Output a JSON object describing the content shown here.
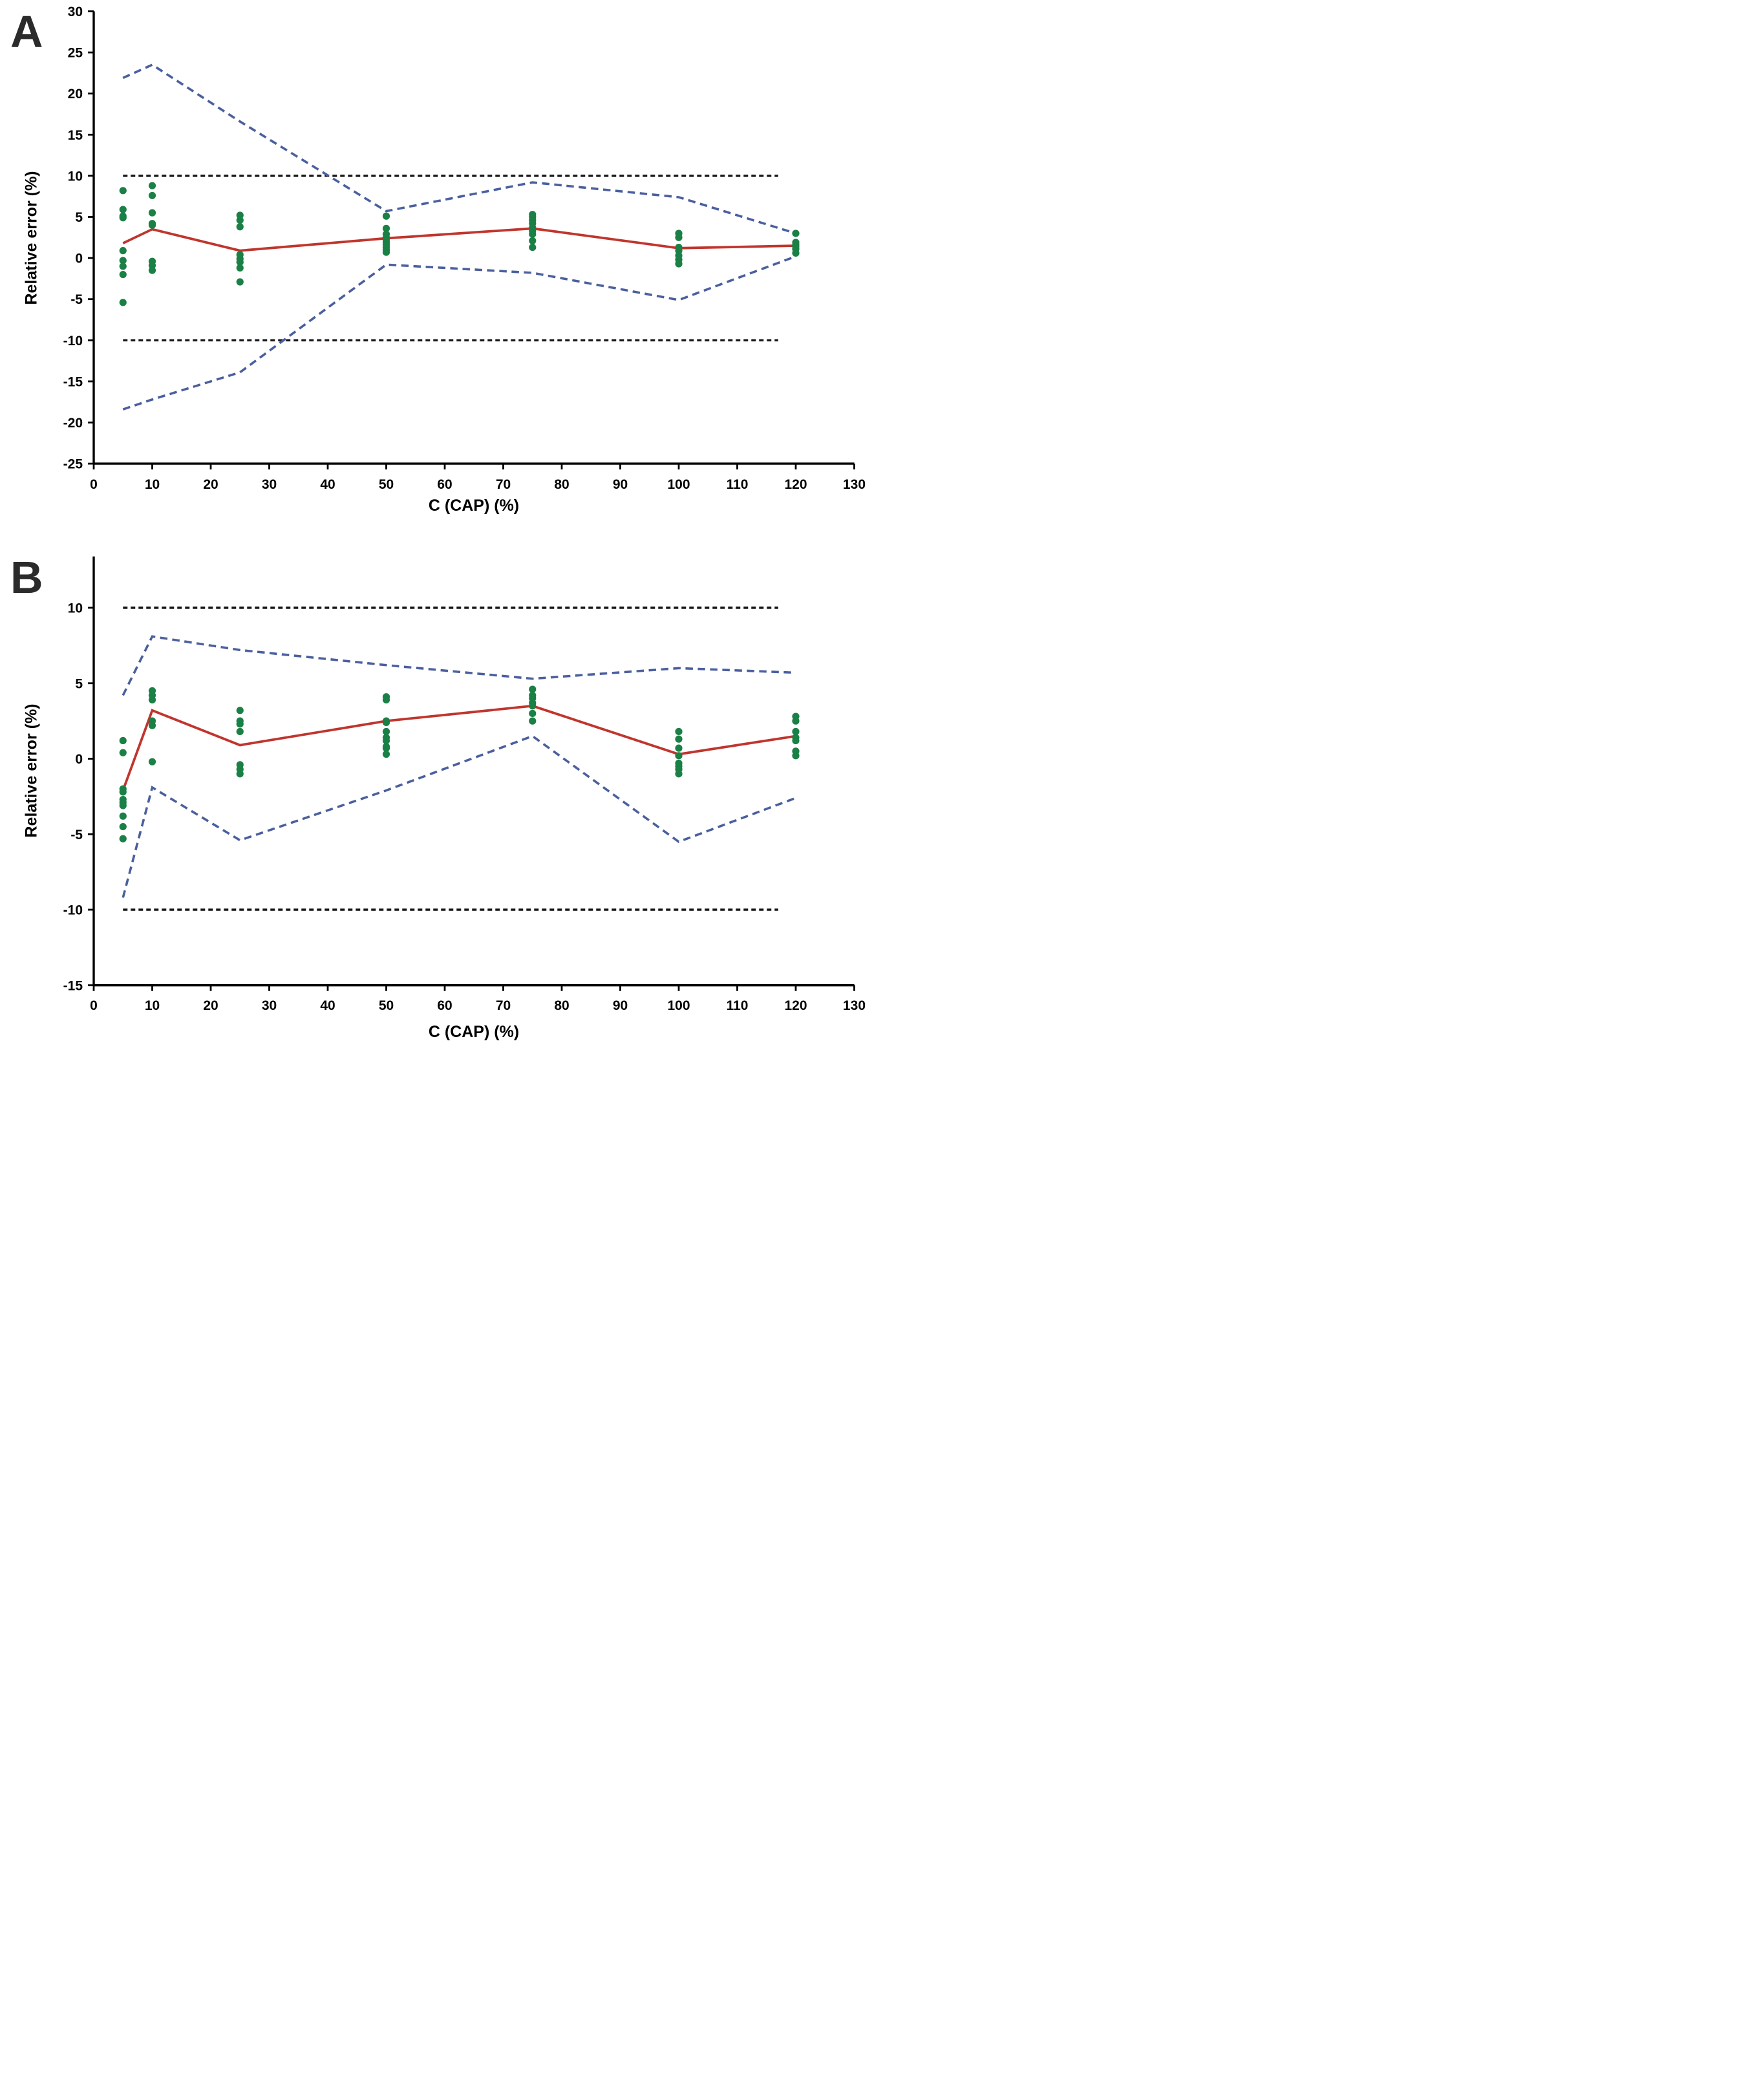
{
  "figure": {
    "background": "#ffffff",
    "panels": [
      "A",
      "B"
    ]
  },
  "chart_data": [
    {
      "panel_label": "A",
      "type": "scatter",
      "title": "",
      "xlabel": "C (CAP) (%)",
      "ylabel": "Relative error (%)",
      "xlim": [
        0,
        130
      ],
      "ylim": [
        -25,
        30
      ],
      "xticks": [
        0,
        10,
        20,
        30,
        40,
        50,
        60,
        70,
        80,
        90,
        100,
        110,
        120,
        130
      ],
      "yticks": [
        30,
        25,
        20,
        15,
        10,
        5,
        0,
        -5,
        -10,
        -15,
        -20,
        -25
      ],
      "grid": false,
      "legend": "none",
      "x": [
        5,
        10,
        25,
        50,
        75,
        100,
        120
      ],
      "points": {
        "label": "individual-relative-errors",
        "color": "#1a8046",
        "by_x": {
          "5": [
            8.2,
            5.9,
            5.1,
            4.9,
            0.9,
            -0.3,
            -1.0,
            -2.0,
            -5.4
          ],
          "10": [
            8.8,
            7.6,
            5.5,
            4.2,
            4.0,
            -0.4,
            -0.9,
            -1.5
          ],
          "25": [
            5.2,
            4.6,
            3.8,
            0.4,
            -0.1,
            -0.5,
            -1.2,
            -2.9
          ],
          "50": [
            5.1,
            3.6,
            2.9,
            2.5,
            2.2,
            1.9,
            1.6,
            1.3,
            1.0,
            0.7
          ],
          "75": [
            5.3,
            5.0,
            4.6,
            4.2,
            3.7,
            3.3,
            2.9,
            2.1,
            1.3
          ],
          "100": [
            3.0,
            2.5,
            1.3,
            0.9,
            0.3,
            -0.2,
            -0.7
          ],
          "120": [
            3.0,
            1.9,
            1.6,
            1.4,
            1.1,
            0.6
          ]
        }
      },
      "series": [
        {
          "name": "upper-acceptance-limit",
          "style": "fine-dashed",
          "color": "#161616",
          "x": [
            5,
            117
          ],
          "values": [
            10,
            10
          ]
        },
        {
          "name": "lower-acceptance-limit",
          "style": "fine-dashed",
          "color": "#161616",
          "x": [
            5,
            117
          ],
          "values": [
            -10,
            -10
          ]
        },
        {
          "name": "upper-tolerance-bound",
          "style": "dashed",
          "color": "#4a5f9e",
          "values": [
            21.9,
            23.5,
            16.6,
            5.7,
            9.2,
            7.4,
            3.0
          ]
        },
        {
          "name": "lower-tolerance-bound",
          "style": "dashed",
          "color": "#4a5f9e",
          "values": [
            -18.4,
            -17.2,
            -13.9,
            -0.8,
            -1.8,
            -5.1,
            0.2
          ]
        },
        {
          "name": "mean-relative-error",
          "style": "solid",
          "color": "#c0352d",
          "values": [
            1.8,
            3.5,
            0.9,
            2.4,
            3.6,
            1.2,
            1.5
          ]
        }
      ]
    },
    {
      "panel_label": "B",
      "type": "scatter",
      "title": "",
      "xlabel": "C (CAP) (%)",
      "ylabel": "Relative error (%)",
      "xlim": [
        0,
        130
      ],
      "ylim": [
        -15,
        13.4
      ],
      "xticks": [
        0,
        10,
        20,
        30,
        40,
        50,
        60,
        70,
        80,
        90,
        100,
        110,
        120,
        130
      ],
      "yticks": [
        10,
        5,
        0,
        -5,
        -10,
        -15
      ],
      "grid": false,
      "legend": "none",
      "x": [
        5,
        10,
        25,
        50,
        75,
        100,
        120
      ],
      "points": {
        "label": "individual-relative-errors",
        "color": "#1a8046",
        "by_x": {
          "5": [
            1.2,
            0.4,
            -2.0,
            -2.2,
            -2.7,
            -2.9,
            -3.1,
            -3.8,
            -4.5,
            -5.3
          ],
          "10": [
            4.5,
            4.2,
            3.9,
            2.5,
            2.2,
            -0.2
          ],
          "25": [
            3.2,
            2.5,
            2.3,
            1.8,
            -0.4,
            -0.7,
            -1.0
          ],
          "50": [
            4.1,
            3.9,
            2.5,
            2.4,
            1.8,
            1.4,
            1.2,
            0.8,
            0.7,
            0.3
          ],
          "75": [
            4.6,
            4.2,
            4.0,
            3.7,
            3.5,
            3.0,
            2.5
          ],
          "100": [
            1.8,
            1.3,
            0.7,
            0.2,
            -0.3,
            -0.5,
            -0.7,
            -1.0
          ],
          "120": [
            2.8,
            2.5,
            1.8,
            1.4,
            1.2,
            0.5,
            0.2
          ]
        }
      },
      "series": [
        {
          "name": "upper-acceptance-limit",
          "style": "fine-dashed",
          "color": "#161616",
          "x": [
            5,
            117
          ],
          "values": [
            10,
            10
          ]
        },
        {
          "name": "lower-acceptance-limit",
          "style": "fine-dashed",
          "color": "#161616",
          "x": [
            5,
            117
          ],
          "values": [
            -10,
            -10
          ]
        },
        {
          "name": "upper-tolerance-bound",
          "style": "dashed",
          "color": "#4a5f9e",
          "values": [
            4.2,
            8.1,
            7.2,
            6.2,
            5.3,
            6.0,
            5.7
          ]
        },
        {
          "name": "lower-tolerance-bound",
          "style": "dashed",
          "color": "#4a5f9e",
          "values": [
            -9.2,
            -1.9,
            -5.4,
            -2.1,
            1.5,
            -5.5,
            -2.6
          ]
        },
        {
          "name": "mean-relative-error",
          "style": "solid",
          "color": "#c0352d",
          "values": [
            -2.1,
            3.2,
            0.9,
            2.5,
            3.5,
            0.3,
            1.5
          ]
        }
      ]
    }
  ]
}
